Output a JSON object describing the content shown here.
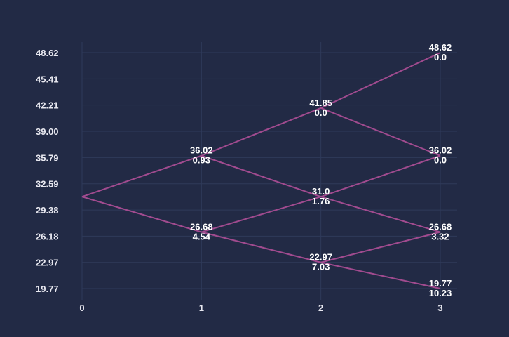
{
  "colors": {
    "background": "#222a45",
    "grid": "#2f3a5a",
    "edge": "#a14b8f",
    "text": "#ffffff"
  },
  "chart_data": {
    "type": "binomial-tree",
    "title": "",
    "xlabel": "",
    "ylabel": "",
    "grid": true,
    "x_ticks": [
      "0",
      "1",
      "2",
      "3"
    ],
    "y_ticks": [
      "19.77",
      "22.97",
      "26.18",
      "29.38",
      "32.59",
      "35.79",
      "39.00",
      "42.21",
      "45.41",
      "48.62"
    ],
    "xlim": [
      0,
      3
    ],
    "ylim": [
      19.77,
      48.62
    ],
    "nodes": [
      {
        "id": "n00",
        "step": 0,
        "price": 31.0,
        "price_label": "",
        "value_label": ""
      },
      {
        "id": "n10",
        "step": 1,
        "price": 36.02,
        "price_label": "36.02",
        "value_label": "0.93"
      },
      {
        "id": "n11",
        "step": 1,
        "price": 26.68,
        "price_label": "26.68",
        "value_label": "4.54"
      },
      {
        "id": "n20",
        "step": 2,
        "price": 41.85,
        "price_label": "41.85",
        "value_label": "0.0"
      },
      {
        "id": "n21",
        "step": 2,
        "price": 31.0,
        "price_label": "31.0",
        "value_label": "1.76"
      },
      {
        "id": "n22",
        "step": 2,
        "price": 22.97,
        "price_label": "22.97",
        "value_label": "7.03"
      },
      {
        "id": "n30",
        "step": 3,
        "price": 48.62,
        "price_label": "48.62",
        "value_label": "0.0"
      },
      {
        "id": "n31",
        "step": 3,
        "price": 36.02,
        "price_label": "36.02",
        "value_label": "0.0"
      },
      {
        "id": "n32",
        "step": 3,
        "price": 26.68,
        "price_label": "26.68",
        "value_label": "3.32"
      },
      {
        "id": "n33",
        "step": 3,
        "price": 19.77,
        "price_label": "19.77",
        "value_label": "10.23"
      }
    ],
    "edges": [
      [
        "n00",
        "n10"
      ],
      [
        "n00",
        "n11"
      ],
      [
        "n10",
        "n20"
      ],
      [
        "n10",
        "n21"
      ],
      [
        "n11",
        "n21"
      ],
      [
        "n11",
        "n22"
      ],
      [
        "n20",
        "n30"
      ],
      [
        "n20",
        "n31"
      ],
      [
        "n21",
        "n31"
      ],
      [
        "n21",
        "n32"
      ],
      [
        "n22",
        "n32"
      ],
      [
        "n22",
        "n33"
      ]
    ]
  }
}
